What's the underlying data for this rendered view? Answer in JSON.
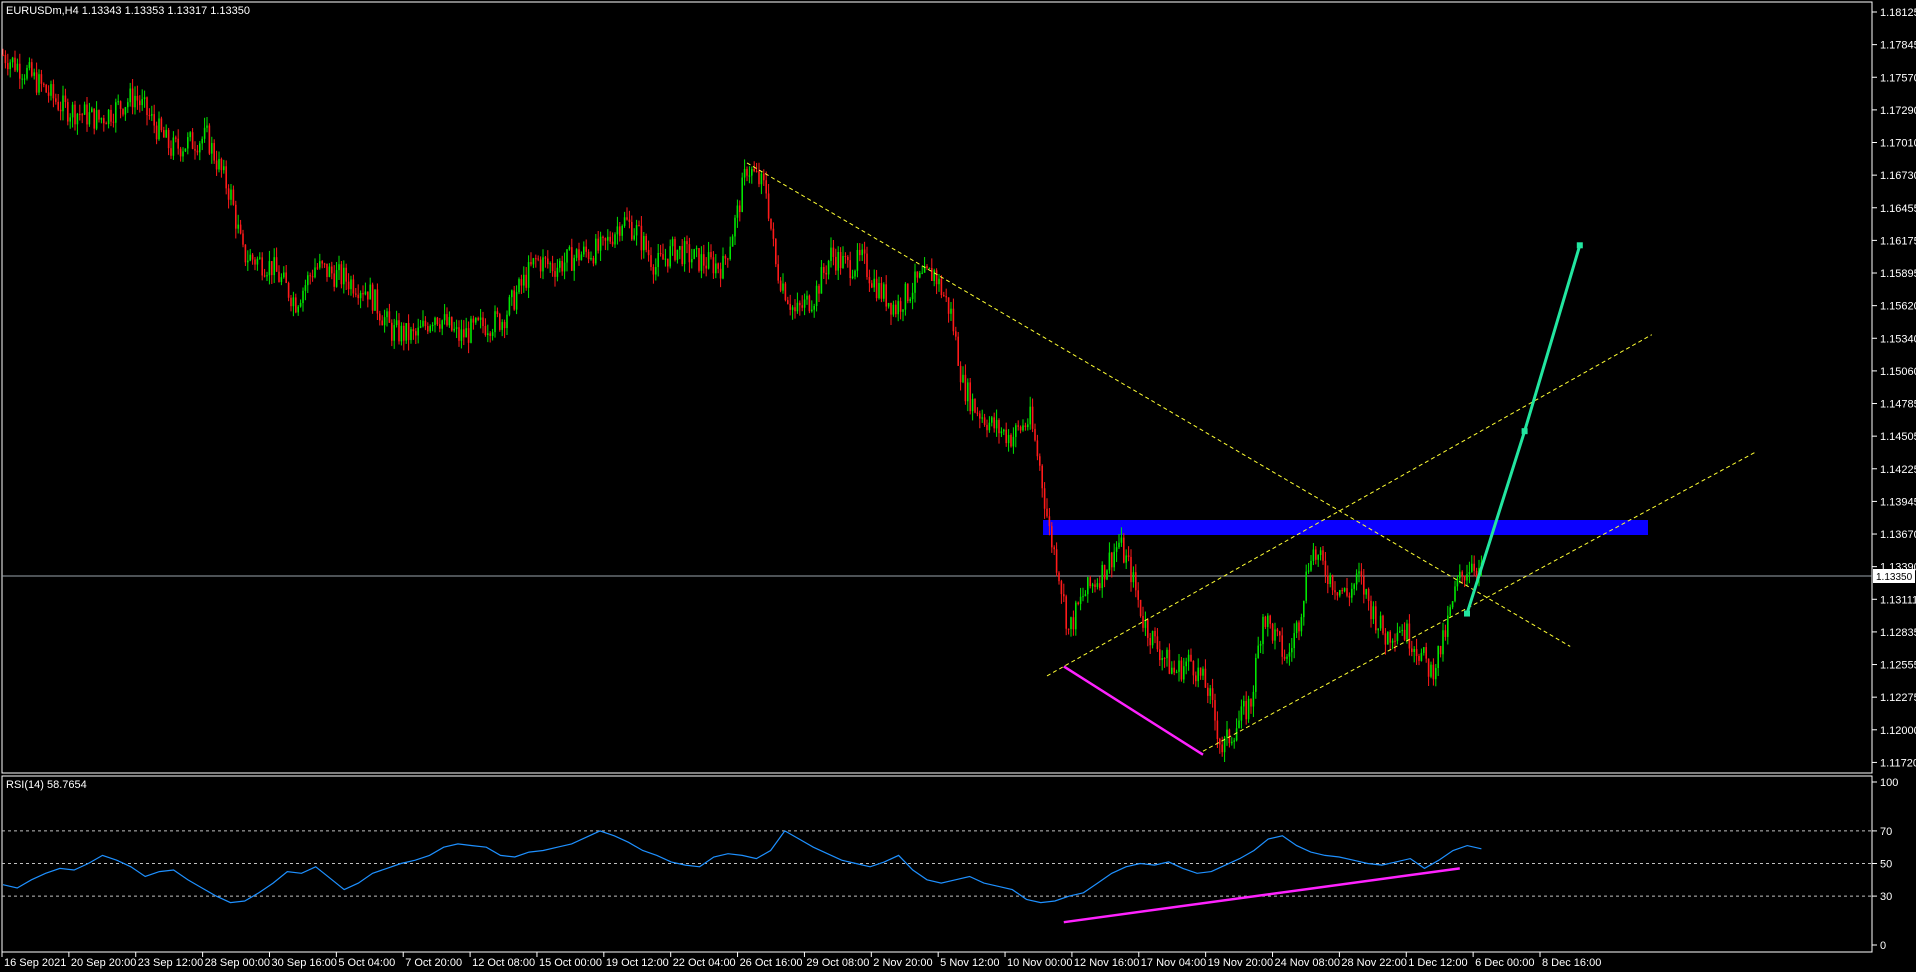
{
  "main": {
    "header": "EURUSDm,H4  1.13343 1.13353 1.13317 1.13350",
    "current_price": "1.13350",
    "price_axis": [
      "1.18125",
      "1.17845",
      "1.17570",
      "1.17290",
      "1.17010",
      "1.16730",
      "1.16455",
      "1.16175",
      "1.15895",
      "1.15620",
      "1.15340",
      "1.15060",
      "1.14785",
      "1.14505",
      "1.14225",
      "1.13945",
      "1.13670",
      "1.13390",
      "1.13111",
      "1.12835",
      "1.12555",
      "1.12275",
      "1.12000",
      "1.11720"
    ]
  },
  "rsi": {
    "header": "RSI(14) 58.7654",
    "axis": [
      "100",
      "70",
      "50",
      "30",
      "0"
    ]
  },
  "time_axis": [
    "16 Sep 2021",
    "20 Sep 20:00",
    "23 Sep 12:00",
    "28 Sep 00:00",
    "30 Sep 16:00",
    "5 Oct 04:00",
    "7 Oct 20:00",
    "12 Oct 08:00",
    "15 Oct 00:00",
    "19 Oct 12:00",
    "22 Oct 04:00",
    "26 Oct 16:00",
    "29 Oct 08:00",
    "2 Nov 20:00",
    "5 Nov 12:00",
    "10 Nov 00:00",
    "12 Nov 16:00",
    "17 Nov 04:00",
    "19 Nov 20:00",
    "24 Nov 08:00",
    "28 Nov 22:00",
    "1 Dec 12:00",
    "6 Dec 00:00",
    "8 Dec 16:00"
  ],
  "chart_data": {
    "type": "candlestick",
    "symbol": "EURUSDm",
    "timeframe": "H4",
    "ohlc_header": {
      "open": 1.13343,
      "high": 1.13353,
      "low": 1.13317,
      "close": 1.1335
    },
    "ylim": [
      1.1172,
      1.1818
    ],
    "close_path": [
      [
        0,
        1.178
      ],
      [
        10,
        1.1765
      ],
      [
        25,
        1.1735
      ],
      [
        40,
        1.1725
      ],
      [
        55,
        1.1745
      ],
      [
        70,
        1.17
      ],
      [
        85,
        1.171
      ],
      [
        95,
        1.166
      ],
      [
        100,
        1.161
      ],
      [
        112,
        1.16
      ],
      [
        122,
        1.157
      ],
      [
        130,
        1.16
      ],
      [
        142,
        1.159
      ],
      [
        152,
        1.158
      ],
      [
        162,
        1.1545
      ],
      [
        172,
        1.154
      ],
      [
        180,
        1.156
      ],
      [
        190,
        1.154
      ],
      [
        200,
        1.155
      ],
      [
        208,
        1.1555
      ],
      [
        215,
        1.158
      ],
      [
        222,
        1.1605
      ],
      [
        230,
        1.16
      ],
      [
        240,
        1.161
      ],
      [
        250,
        1.1615
      ],
      [
        258,
        1.164
      ],
      [
        264,
        1.163
      ],
      [
        272,
        1.16
      ],
      [
        280,
        1.1615
      ],
      [
        290,
        1.1605
      ],
      [
        300,
        1.16
      ],
      [
        306,
        1.1645
      ],
      [
        310,
        1.1685
      ],
      [
        318,
        1.1665
      ],
      [
        322,
        1.16
      ],
      [
        330,
        1.156
      ],
      [
        338,
        1.1575
      ],
      [
        345,
        1.161
      ],
      [
        352,
        1.16
      ],
      [
        358,
        1.1605
      ],
      [
        365,
        1.158
      ],
      [
        372,
        1.1565
      ],
      [
        380,
        1.1585
      ],
      [
        388,
        1.1595
      ],
      [
        395,
        1.156
      ],
      [
        400,
        1.15
      ],
      [
        405,
        1.148
      ],
      [
        412,
        1.1465
      ],
      [
        420,
        1.1455
      ],
      [
        428,
        1.147
      ],
      [
        432,
        1.143
      ],
      [
        436,
        1.1375
      ],
      [
        440,
        1.134
      ],
      [
        444,
        1.129
      ],
      [
        450,
        1.132
      ],
      [
        458,
        1.134
      ],
      [
        465,
        1.1365
      ],
      [
        470,
        1.134
      ],
      [
        475,
        1.13
      ],
      [
        480,
        1.128
      ],
      [
        488,
        1.1255
      ],
      [
        495,
        1.1265
      ],
      [
        502,
        1.124
      ],
      [
        508,
        1.119
      ],
      [
        514,
        1.121
      ],
      [
        520,
        1.123
      ],
      [
        525,
        1.1305
      ],
      [
        530,
        1.1285
      ],
      [
        535,
        1.1265
      ],
      [
        540,
        1.13
      ],
      [
        545,
        1.136
      ],
      [
        550,
        1.1345
      ],
      [
        555,
        1.133
      ],
      [
        560,
        1.132
      ],
      [
        565,
        1.1335
      ],
      [
        570,
        1.131
      ],
      [
        576,
        1.1285
      ],
      [
        582,
        1.1295
      ],
      [
        588,
        1.128
      ],
      [
        595,
        1.1255
      ],
      [
        600,
        1.128
      ],
      [
        606,
        1.133
      ],
      [
        612,
        1.135
      ],
      [
        616,
        1.134
      ]
    ],
    "rsi": {
      "period": 14,
      "value": 58.7654,
      "levels": [
        70,
        50,
        30
      ],
      "ylim": [
        0,
        100
      ],
      "values": [
        37,
        35,
        40,
        44,
        47,
        46,
        50,
        55,
        52,
        48,
        42,
        45,
        46,
        40,
        35,
        30,
        26,
        27,
        32,
        38,
        45,
        44,
        48,
        41,
        34,
        38,
        44,
        47,
        50,
        52,
        55,
        60,
        62,
        61,
        60,
        55,
        54,
        57,
        58,
        60,
        62,
        66,
        70,
        67,
        63,
        58,
        55,
        51,
        49,
        48,
        54,
        56,
        55,
        53,
        58,
        70,
        65,
        60,
        56,
        52,
        50,
        48,
        51,
        55,
        46,
        40,
        38,
        40,
        42,
        38,
        36,
        34,
        28,
        26,
        27,
        30,
        32,
        38,
        44,
        48,
        50,
        49,
        51,
        47,
        44,
        45,
        49,
        53,
        58,
        65,
        67,
        61,
        57,
        55,
        54,
        52,
        50,
        49,
        51,
        53,
        47,
        52,
        58,
        61,
        59
      ]
    },
    "annotations": {
      "resistance_zone": [
        1.1373,
        1.1385
      ],
      "downtrend_line": [
        [
          310,
          1.1688
        ],
        [
          653,
          1.1277
        ]
      ],
      "channel_lower": [
        [
          435,
          1.1252
        ],
        [
          730,
          1.1442
        ]
      ],
      "channel_upper": [
        [
          435,
          1.1252
        ],
        [
          687,
          1.1542
        ]
      ],
      "channel_base": [
        [
          500,
          1.1188
        ],
        [
          730,
          1.1442
        ]
      ],
      "price_divergence": [
        [
          442,
          1.126
        ],
        [
          500,
          1.1185
        ]
      ],
      "rsi_divergence": [
        [
          442,
          14
        ],
        [
          607,
          47
        ]
      ],
      "projection": [
        [
          610,
          1.1305
        ],
        [
          634,
          1.146
        ],
        [
          657,
          1.1618
        ]
      ]
    }
  }
}
